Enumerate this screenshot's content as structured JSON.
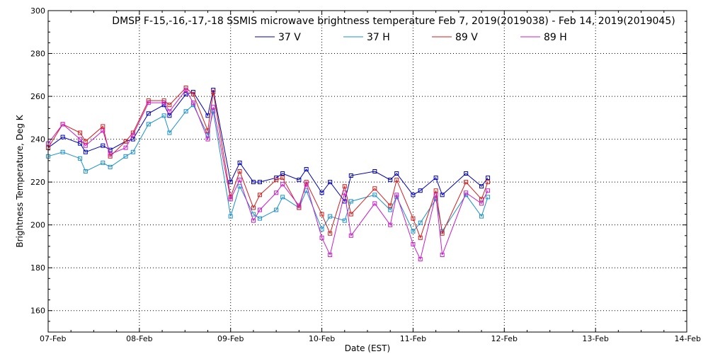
{
  "chart_data": {
    "type": "line",
    "title": "DMSP F-15,-16,-17,-18 SSMIS microwave brightness temperature Feb  7, 2019(2019038) - Feb 14, 2019(2019045)",
    "xlabel": "Date (EST)",
    "ylabel": "Brightness Temperature, Deg K",
    "xlim": [
      0,
      7
    ],
    "ylim": [
      150,
      300
    ],
    "x_ticks": [
      {
        "value": 0,
        "label": "07-Feb"
      },
      {
        "value": 1,
        "label": "08-Feb"
      },
      {
        "value": 2,
        "label": "09-Feb"
      },
      {
        "value": 3,
        "label": "10-Feb"
      },
      {
        "value": 4,
        "label": "11-Feb"
      },
      {
        "value": 5,
        "label": "12-Feb"
      },
      {
        "value": 6,
        "label": "13-Feb"
      },
      {
        "value": 7,
        "label": "14-Feb"
      }
    ],
    "y_ticks": [
      160,
      180,
      200,
      220,
      240,
      260,
      280,
      300
    ],
    "grid": true,
    "legend": "top",
    "x": [
      0.0,
      0.16,
      0.35,
      0.41,
      0.6,
      0.68,
      0.85,
      0.93,
      1.1,
      1.27,
      1.33,
      1.51,
      1.59,
      1.75,
      1.81,
      2.0,
      2.1,
      2.25,
      2.32,
      2.5,
      2.57,
      2.75,
      2.83,
      3.0,
      3.09,
      3.25,
      3.32,
      3.58,
      3.75,
      3.82,
      4.0,
      4.08,
      4.25,
      4.32,
      4.58,
      4.75,
      4.82
    ],
    "series": [
      {
        "name": "37 V",
        "color": "#0000b4",
        "values": [
          236,
          241,
          238,
          234,
          237,
          235,
          239,
          240,
          252,
          256,
          251,
          261,
          262,
          251,
          263,
          220,
          229,
          220,
          220,
          222,
          224,
          221,
          226,
          215,
          220,
          211,
          223,
          225,
          221,
          224,
          214,
          216,
          222,
          214,
          224,
          218,
          222
        ]
      },
      {
        "name": "37 H",
        "color": "#1e90c8",
        "values": [
          232,
          234,
          231,
          225,
          229,
          227,
          232,
          234,
          247,
          251,
          243,
          253,
          256,
          242,
          253,
          204,
          218,
          205,
          203,
          207,
          213,
          208,
          216,
          198,
          204,
          202,
          211,
          214,
          207,
          213,
          197,
          201,
          212,
          197,
          214,
          204,
          213
        ]
      },
      {
        "name": "89 V",
        "color": "#d21e1e",
        "values": [
          236,
          247,
          243,
          239,
          246,
          232,
          239,
          243,
          258,
          258,
          256,
          264,
          261,
          244,
          262,
          213,
          225,
          208,
          214,
          221,
          222,
          208,
          220,
          205,
          196,
          218,
          205,
          217,
          209,
          221,
          203,
          194,
          216,
          196,
          220,
          212,
          220
        ]
      },
      {
        "name": "89 H",
        "color": "#c81ec8",
        "values": [
          238,
          247,
          240,
          237,
          244,
          233,
          236,
          242,
          257,
          257,
          253,
          263,
          257,
          240,
          255,
          212,
          221,
          202,
          207,
          215,
          219,
          209,
          219,
          194,
          186,
          215,
          195,
          210,
          200,
          214,
          191,
          184,
          214,
          186,
          215,
          210,
          216
        ]
      }
    ]
  }
}
